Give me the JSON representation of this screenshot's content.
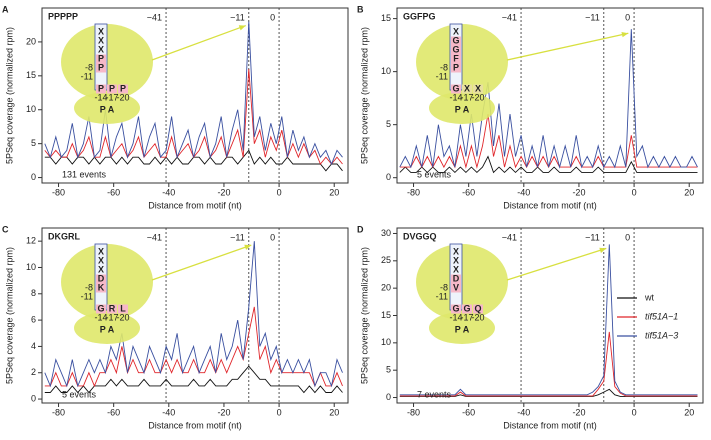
{
  "chart_data": [
    {
      "type": "line",
      "panel": "A",
      "title": "PPPPP",
      "xlabel": "Distance from motif (nt)",
      "ylabel": "5PSeq coverage (normalized rpm)",
      "xlim": [
        -86,
        25
      ],
      "xticks": [
        -80,
        -60,
        -40,
        -20,
        0,
        20
      ],
      "ylim": [
        -0.8,
        25
      ],
      "yticks": [
        0,
        5,
        10,
        15,
        20
      ],
      "vlines": [
        {
          "value": -41,
          "label": "−41"
        },
        {
          "value": -11,
          "label": "−11"
        },
        {
          "value": 0,
          "label": "0"
        }
      ],
      "annotation": "131 events",
      "inset": {
        "tunnel": [
          "X",
          "X",
          "X",
          "P",
          "P"
        ],
        "row": [
          "P",
          "P",
          "P"
        ],
        "numbers": [
          "-8",
          "-11",
          "-14",
          "-17",
          "-20"
        ],
        "sites": "P A"
      },
      "x": [
        -85,
        -83,
        -81,
        -79,
        -77,
        -75,
        -73,
        -71,
        -69,
        -67,
        -65,
        -63,
        -61,
        -59,
        -57,
        -55,
        -53,
        -51,
        -49,
        -47,
        -45,
        -43,
        -41,
        -39,
        -37,
        -35,
        -33,
        -31,
        -29,
        -27,
        -25,
        -23,
        -21,
        -19,
        -17,
        -15,
        -13,
        -11,
        -9,
        -7,
        -5,
        -3,
        -1,
        1,
        3,
        5,
        7,
        9,
        11,
        13,
        15,
        17,
        19,
        21,
        23
      ],
      "series": [
        {
          "color": "#111111",
          "values": [
            3,
            3,
            2,
            3,
            3,
            2,
            3,
            3,
            2,
            3,
            2,
            3,
            3,
            2,
            3,
            2,
            3,
            3,
            2,
            2,
            3,
            2,
            3,
            2,
            3,
            2,
            2,
            3,
            3,
            2,
            3,
            2,
            2,
            3,
            3,
            2,
            3,
            4,
            2,
            3,
            2,
            3,
            2,
            2,
            3,
            2,
            2,
            2,
            2,
            2,
            2,
            1,
            2,
            2,
            1
          ]
        },
        {
          "color": "#e0262b",
          "values": [
            4,
            3,
            4,
            3,
            3,
            5,
            3,
            4,
            6,
            3,
            3,
            6,
            3,
            4,
            5,
            3,
            4,
            6,
            3,
            4,
            5,
            3,
            3,
            6,
            3,
            4,
            5,
            3,
            4,
            6,
            3,
            4,
            6,
            3,
            5,
            7,
            3,
            16,
            5,
            7,
            3,
            6,
            4,
            7,
            3,
            5,
            3,
            5,
            3,
            4,
            2,
            3,
            2,
            3,
            2
          ]
        },
        {
          "color": "#3a50a0",
          "values": [
            5,
            3,
            6,
            3,
            4,
            8,
            3,
            5,
            9,
            3,
            4,
            10,
            3,
            6,
            8,
            3,
            5,
            9,
            3,
            6,
            8,
            3,
            4,
            9,
            3,
            5,
            7,
            3,
            6,
            8,
            3,
            5,
            9,
            3,
            7,
            10,
            4,
            23,
            6,
            9,
            4,
            8,
            5,
            9,
            3,
            7,
            4,
            6,
            3,
            5,
            3,
            4,
            2,
            4,
            3
          ]
        }
      ]
    },
    {
      "type": "line",
      "panel": "B",
      "title": "GGFPG",
      "xlabel": "Distance from motif (nt)",
      "ylabel": "5PSeq coverage (normalized rpm)",
      "xlim": [
        -86,
        25
      ],
      "xticks": [
        -80,
        -60,
        -40,
        -20,
        0,
        20
      ],
      "ylim": [
        -0.5,
        16
      ],
      "yticks": [
        0,
        5,
        10,
        15
      ],
      "vlines": [
        {
          "value": -41,
          "label": "−41"
        },
        {
          "value": -11,
          "label": "−11"
        },
        {
          "value": 0,
          "label": "0"
        }
      ],
      "annotation": "5 events",
      "inset": {
        "tunnel": [
          "X",
          "G",
          "G",
          "F",
          "P"
        ],
        "row": [
          "G",
          "X",
          "X"
        ],
        "numbers": [
          "-8",
          "-11",
          "-14",
          "-17",
          "-20"
        ],
        "sites": "P A"
      },
      "x": [
        -85,
        -83,
        -81,
        -79,
        -77,
        -75,
        -73,
        -71,
        -69,
        -67,
        -65,
        -63,
        -61,
        -59,
        -57,
        -55,
        -53,
        -51,
        -49,
        -47,
        -45,
        -43,
        -41,
        -39,
        -37,
        -35,
        -33,
        -31,
        -29,
        -27,
        -25,
        -23,
        -21,
        -19,
        -17,
        -15,
        -13,
        -11,
        -9,
        -7,
        -5,
        -3,
        -1,
        1,
        3,
        5,
        7,
        9,
        11,
        13,
        15,
        17,
        19,
        21,
        23
      ],
      "series": [
        {
          "color": "#111111",
          "values": [
            0.5,
            1,
            0.5,
            0.5,
            1,
            0.5,
            1,
            0.5,
            0.5,
            1,
            0.5,
            1,
            0.5,
            1,
            0.5,
            1,
            2,
            0.5,
            1,
            0.5,
            1,
            0.5,
            1,
            0.5,
            0.5,
            1,
            0.5,
            0.5,
            1,
            0.5,
            0.5,
            0.5,
            1,
            0.5,
            0.5,
            0.5,
            1,
            0.5,
            0.5,
            0.5,
            0.5,
            0.5,
            1.5,
            0.5,
            0.5,
            0.5,
            0.5,
            0.5,
            0.5,
            0.5,
            0.5,
            0.5,
            0.5,
            0.5,
            0.5
          ]
        },
        {
          "color": "#e0262b",
          "values": [
            1,
            1,
            1,
            2,
            1,
            2,
            1,
            2,
            1,
            2,
            1,
            3,
            1,
            3,
            1,
            3,
            6,
            2,
            4,
            1,
            3,
            1,
            2,
            1,
            2,
            1,
            2,
            1,
            2,
            1,
            1,
            1,
            2,
            1,
            1,
            1,
            2,
            1,
            1,
            1,
            1,
            1,
            4,
            1,
            1,
            1,
            1,
            1,
            1,
            1,
            1,
            1,
            1,
            1,
            1
          ]
        },
        {
          "color": "#3a50a0",
          "values": [
            1,
            2,
            1,
            3,
            1,
            4,
            1,
            5,
            2,
            3,
            1,
            5,
            2,
            6,
            2,
            6,
            9,
            3,
            7,
            2,
            6,
            2,
            4,
            1,
            3,
            1,
            4,
            1,
            3,
            1,
            3,
            1,
            4,
            1,
            2,
            1,
            3,
            1,
            2,
            1,
            3,
            1,
            14,
            2,
            3,
            1,
            2,
            1,
            2,
            1,
            2,
            1,
            1,
            2,
            1
          ]
        }
      ]
    },
    {
      "type": "line",
      "panel": "C",
      "title": "DKGRL",
      "xlabel": "Distance from motif (nt)",
      "ylabel": "5PSeq coverage (normalized rpm)",
      "xlim": [
        -86,
        25
      ],
      "xticks": [
        -80,
        -60,
        -40,
        -20,
        0,
        20
      ],
      "ylim": [
        -0.3,
        13
      ],
      "yticks": [
        0,
        2,
        4,
        6,
        8,
        10,
        12
      ],
      "vlines": [
        {
          "value": -41,
          "label": "−41"
        },
        {
          "value": -11,
          "label": "−11"
        },
        {
          "value": 0,
          "label": "0"
        }
      ],
      "annotation": "5 events",
      "inset": {
        "tunnel": [
          "X",
          "X",
          "X",
          "D",
          "K"
        ],
        "row": [
          "G",
          "R",
          "L"
        ],
        "numbers": [
          "-8",
          "-11",
          "-14",
          "-17",
          "-20"
        ],
        "sites": "P A"
      },
      "x": [
        -85,
        -83,
        -81,
        -79,
        -77,
        -75,
        -73,
        -71,
        -69,
        -67,
        -65,
        -63,
        -61,
        -59,
        -57,
        -55,
        -53,
        -51,
        -49,
        -47,
        -45,
        -43,
        -41,
        -39,
        -37,
        -35,
        -33,
        -31,
        -29,
        -27,
        -25,
        -23,
        -21,
        -19,
        -17,
        -15,
        -13,
        -11,
        -9,
        -7,
        -5,
        -3,
        -1,
        1,
        3,
        5,
        7,
        9,
        11,
        13,
        15,
        17,
        19,
        21,
        23
      ],
      "series": [
        {
          "color": "#111111",
          "values": [
            0.5,
            0.5,
            1,
            0.5,
            0.5,
            1,
            0.5,
            1,
            0.5,
            1,
            1,
            1,
            1.5,
            1,
            1.5,
            1,
            1,
            1,
            1.5,
            1,
            1,
            1,
            1.5,
            1,
            1,
            1,
            1,
            1.5,
            1,
            1,
            1.5,
            1,
            1,
            1,
            1.5,
            1.5,
            2,
            2.5,
            2,
            1.5,
            1.5,
            1,
            1,
            1,
            1,
            1,
            1,
            0.5,
            1,
            0.5,
            1,
            0.5,
            0.5,
            1,
            0.5
          ]
        },
        {
          "color": "#e0262b",
          "values": [
            1,
            1,
            2,
            1,
            1,
            2,
            1,
            1,
            2,
            1,
            2,
            2,
            3,
            2,
            4,
            2,
            3,
            2,
            2,
            3,
            2,
            2,
            3,
            2,
            3,
            2,
            2,
            3,
            2,
            2,
            3,
            2,
            3,
            2,
            3,
            4,
            3,
            5,
            7,
            3,
            4,
            2,
            3,
            2,
            2,
            2,
            2,
            2,
            2,
            1,
            2,
            1,
            1,
            2,
            1
          ]
        },
        {
          "color": "#3a50a0",
          "values": [
            2,
            1,
            3,
            2,
            1,
            3,
            1,
            2,
            3,
            2,
            3,
            2,
            4,
            3,
            5,
            2,
            4,
            3,
            2,
            4,
            3,
            2,
            4,
            3,
            5,
            2,
            3,
            4,
            2,
            3,
            4,
            2,
            5,
            3,
            4,
            6,
            3,
            7,
            12,
            4,
            5,
            3,
            4,
            2,
            3,
            2,
            3,
            2,
            3,
            1,
            2,
            2,
            1,
            3,
            2
          ]
        }
      ]
    },
    {
      "type": "line",
      "panel": "D",
      "title": "DVGGQ",
      "xlabel": "Distance from motif (nt)",
      "ylabel": "5PSeq coverage (normalized rpm)",
      "xlim": [
        -86,
        25
      ],
      "xticks": [
        -80,
        -60,
        -40,
        -20,
        0,
        20
      ],
      "ylim": [
        -1,
        31
      ],
      "yticks": [
        0,
        5,
        10,
        15,
        20,
        25,
        30
      ],
      "vlines": [
        {
          "value": -41,
          "label": "−41"
        },
        {
          "value": -11,
          "label": "−11"
        },
        {
          "value": 0,
          "label": "0"
        }
      ],
      "annotation": "7 events",
      "legend": "right",
      "inset": {
        "tunnel": [
          "X",
          "X",
          "X",
          "D",
          "V"
        ],
        "row": [
          "G",
          "G",
          "Q"
        ],
        "numbers": [
          "-8",
          "-11",
          "-14",
          "-17",
          "-20"
        ],
        "sites": "P A"
      },
      "x": [
        -85,
        -83,
        -81,
        -79,
        -77,
        -75,
        -73,
        -71,
        -69,
        -67,
        -65,
        -63,
        -61,
        -59,
        -57,
        -55,
        -53,
        -51,
        -49,
        -47,
        -45,
        -43,
        -41,
        -39,
        -37,
        -35,
        -33,
        -31,
        -29,
        -27,
        -25,
        -23,
        -21,
        -19,
        -17,
        -15,
        -13,
        -11,
        -9,
        -7,
        -5,
        -3,
        -1,
        1,
        3,
        5,
        7,
        9,
        11,
        13,
        15,
        17,
        19,
        21,
        23
      ],
      "series": [
        {
          "name": "wt",
          "color": "#111111",
          "values": [
            0.2,
            0.2,
            0.2,
            0.2,
            0.2,
            0.2,
            0.2,
            0.2,
            0.2,
            0.2,
            0.2,
            0.5,
            0.2,
            0.2,
            0.2,
            0.2,
            0.2,
            0.2,
            0.2,
            0.2,
            0.2,
            0.2,
            0.2,
            0.2,
            0.2,
            0.2,
            0.2,
            0.2,
            0.2,
            0.2,
            0.2,
            0.2,
            0.2,
            0.2,
            0.2,
            0.2,
            0.5,
            1,
            1.5,
            0.5,
            0.2,
            0.2,
            0.2,
            0.2,
            0.2,
            0.2,
            0.2,
            0.2,
            0.2,
            0.2,
            0.2,
            0.2,
            0.2,
            0.2,
            0.2
          ]
        },
        {
          "name": "tif51A−1",
          "color": "#e0262b",
          "values": [
            0.3,
            0.3,
            0.3,
            0.3,
            0.3,
            0.3,
            0.3,
            0.3,
            0.3,
            0.3,
            0.3,
            1,
            0.3,
            0.3,
            0.3,
            0.3,
            0.3,
            0.3,
            0.3,
            0.3,
            0.3,
            0.3,
            0.3,
            0.3,
            0.3,
            0.3,
            0.3,
            0.3,
            0.3,
            0.3,
            0.3,
            0.3,
            0.3,
            0.3,
            0.3,
            0.3,
            1.5,
            3,
            12,
            2,
            0.8,
            0.3,
            0.3,
            0.3,
            0.3,
            0.3,
            0.3,
            0.3,
            0.3,
            0.3,
            0.3,
            0.3,
            0.3,
            0.3,
            0.3
          ]
        },
        {
          "name": "tif51A−3",
          "color": "#3a50a0",
          "values": [
            0.5,
            0.5,
            0.5,
            0.5,
            0.5,
            0.5,
            0.5,
            0.5,
            0.5,
            0.5,
            0.5,
            1.5,
            0.5,
            0.5,
            0.5,
            0.5,
            0.5,
            0.5,
            0.5,
            0.5,
            0.5,
            0.5,
            0.5,
            0.5,
            0.5,
            0.5,
            0.5,
            0.5,
            0.5,
            0.5,
            0.5,
            0.5,
            0.5,
            0.5,
            0.5,
            1,
            2,
            4,
            28,
            3,
            1,
            0.5,
            0.5,
            0.5,
            0.5,
            0.5,
            0.5,
            0.5,
            0.5,
            0.5,
            0.5,
            0.5,
            0.5,
            0.5,
            0.5
          ]
        }
      ]
    }
  ]
}
